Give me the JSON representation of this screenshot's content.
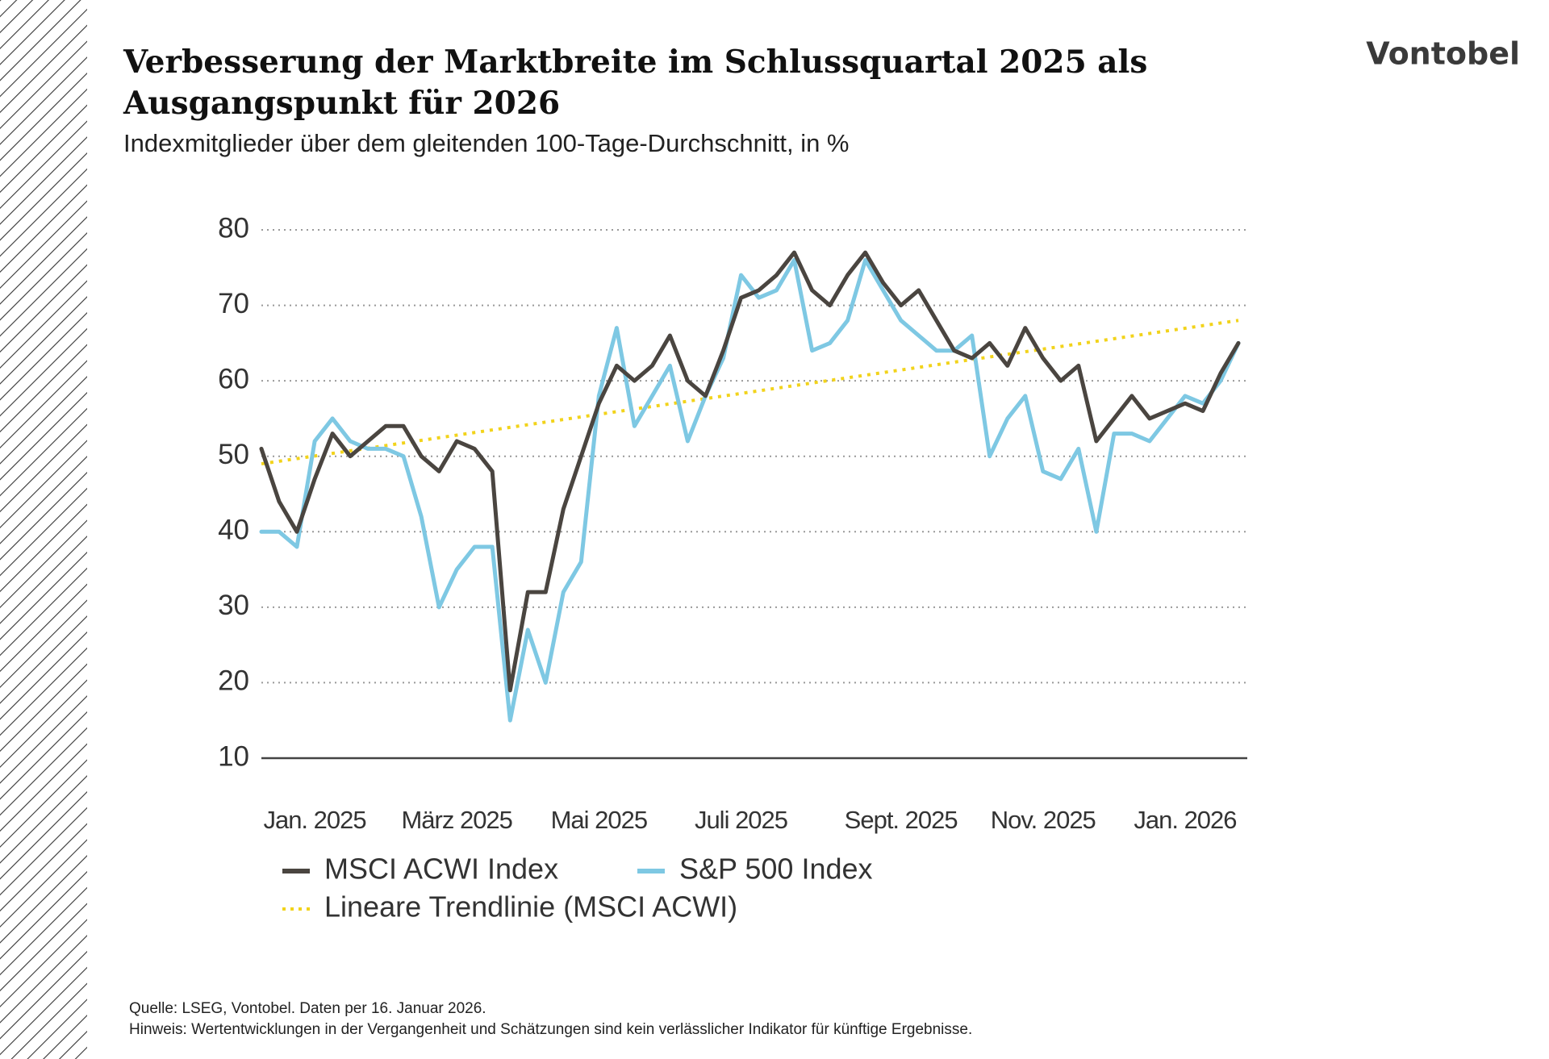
{
  "logo": "Vontobel",
  "footer": {
    "source": "Quelle: LSEG, Vontobel. Daten per 16. Januar 2026.",
    "note": "Hinweis: Wertentwicklungen in der Vergangenheit und Schätzungen sind kein verlässlicher Indikator für künftige Ergebnisse."
  },
  "chart_data": {
    "type": "line",
    "title": [
      "Verbesserung der Marktbreite im Schlussquartal 2025 als",
      "Ausgangspunkt für 2026"
    ],
    "subtitle": "Indexmitglieder über dem gleitenden 100-Tage-Durchschnitt, in %",
    "categories": [
      null,
      null,
      null,
      "Jan. 2025",
      null,
      null,
      null,
      null,
      null,
      null,
      null,
      "März 2025",
      null,
      null,
      null,
      null,
      null,
      null,
      null,
      "Mai 2025",
      null,
      null,
      null,
      null,
      null,
      null,
      null,
      "Juli 2025",
      null,
      null,
      null,
      null,
      null,
      null,
      null,
      null,
      "Sept. 2025",
      null,
      null,
      null,
      null,
      null,
      null,
      null,
      "Nov. 2025",
      null,
      null,
      null,
      null,
      null,
      null,
      null,
      "Jan. 2026",
      null,
      null,
      null
    ],
    "ylim": [
      10,
      80
    ],
    "yticks": [
      10,
      20,
      30,
      40,
      50,
      60,
      70,
      80
    ],
    "grid": true,
    "series": [
      {
        "name": "MSCI ACWI Index",
        "color": "#4a4540",
        "values": [
          51,
          44,
          40,
          47,
          53,
          50,
          52,
          54,
          54,
          50,
          48,
          52,
          51,
          48,
          19,
          32,
          32,
          43,
          50,
          57,
          62,
          60,
          62,
          66,
          60,
          58,
          64,
          71,
          72,
          74,
          77,
          72,
          70,
          74,
          77,
          73,
          70,
          72,
          68,
          64,
          63,
          65,
          62,
          67,
          63,
          60,
          62,
          52,
          55,
          58,
          55,
          56,
          57,
          56,
          61,
          65
        ]
      },
      {
        "name": "S&P 500 Index",
        "color": "#7ec8e3",
        "values": [
          40,
          40,
          38,
          52,
          55,
          52,
          51,
          51,
          50,
          42,
          30,
          35,
          38,
          38,
          15,
          27,
          20,
          32,
          36,
          58,
          67,
          54,
          58,
          62,
          52,
          58,
          63,
          74,
          71,
          72,
          76,
          64,
          65,
          68,
          76,
          72,
          68,
          66,
          64,
          64,
          66,
          50,
          55,
          58,
          48,
          47,
          51,
          40,
          53,
          53,
          52,
          55,
          58,
          57,
          60,
          65
        ]
      }
    ],
    "trendline": {
      "name": "Lineare Trendlinie (MSCI ACWI)",
      "color": "#f2d31b",
      "values": [
        49,
        68
      ]
    }
  }
}
